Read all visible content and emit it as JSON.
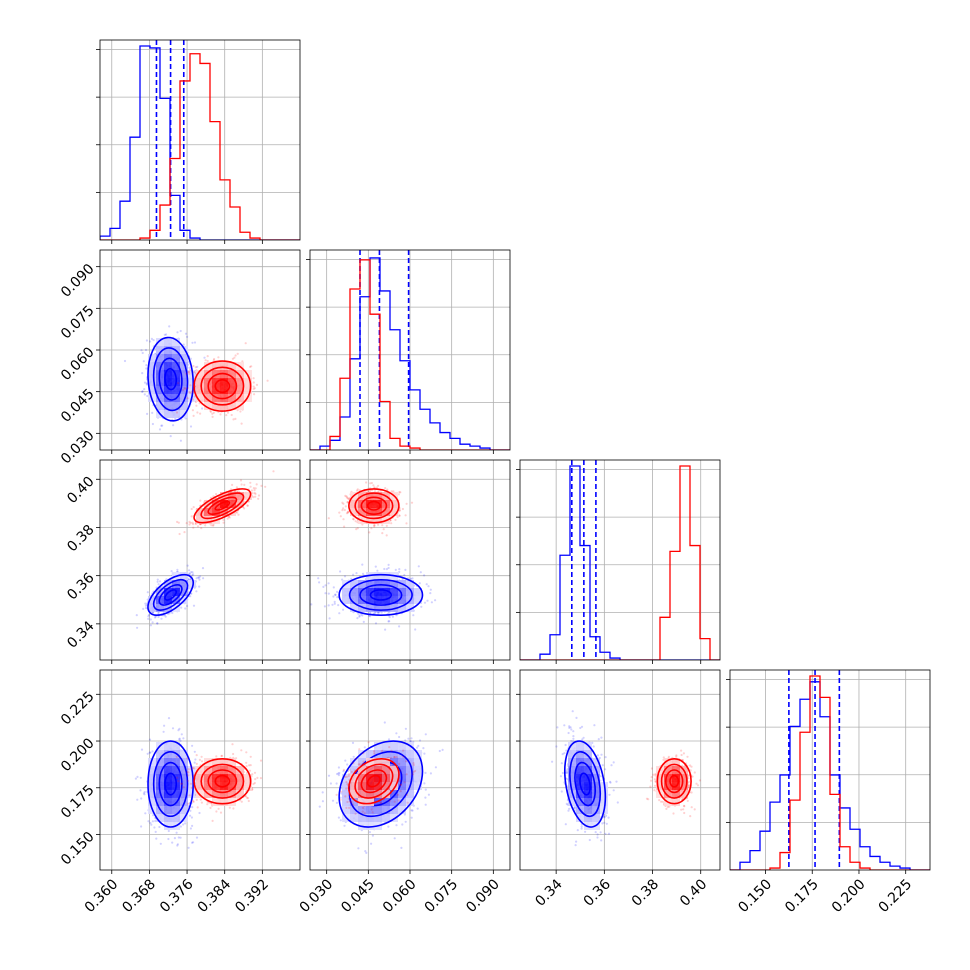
{
  "chart_data": {
    "type": "corner",
    "grid": true,
    "params": [
      {
        "range": [
          0.3575,
          0.4
        ],
        "ticks": [
          0.36,
          0.368,
          0.376,
          0.384,
          0.392
        ],
        "tick_labels": [
          "0.360",
          "0.368",
          "0.376",
          "0.384",
          "0.392"
        ]
      },
      {
        "range": [
          0.024,
          0.096
        ],
        "ticks": [
          0.03,
          0.045,
          0.06,
          0.075,
          0.09
        ],
        "tick_labels": [
          "0.030",
          "0.045",
          "0.060",
          "0.075",
          "0.090"
        ]
      },
      {
        "range": [
          0.325,
          0.408
        ],
        "ticks": [
          0.34,
          0.36,
          0.38,
          0.4
        ],
        "tick_labels": [
          "0.34",
          "0.36",
          "0.38",
          "0.40"
        ]
      },
      {
        "range": [
          0.131,
          0.238
        ],
        "ticks": [
          0.15,
          0.175,
          0.2,
          0.225
        ],
        "tick_labels": [
          "0.150",
          "0.175",
          "0.200",
          "0.225"
        ]
      }
    ],
    "series": [
      {
        "color": "#0000ff",
        "mean": [
          0.3725,
          0.0495,
          0.352,
          0.177
        ],
        "std": [
          0.0024,
          0.0075,
          0.0042,
          0.0115
        ],
        "corr": [
          [
            1,
            -0.1,
            0.6,
            0.0
          ],
          [
            -0.1,
            1,
            0.0,
            0.3
          ],
          [
            0.6,
            0.0,
            1,
            -0.3
          ],
          [
            0.0,
            0.3,
            -0.3,
            1
          ]
        ],
        "quantile_lines": [
          [
            0.3695,
            0.3725,
            0.3753
          ],
          [
            0.042,
            0.049,
            0.0595
          ],
          [
            0.3465,
            0.3515,
            0.3565
          ],
          [
            0.1625,
            0.1765,
            0.1895
          ]
        ],
        "histograms": [
          [
            0.02,
            0.06,
            0.2,
            0.53,
            1.0,
            0.99,
            0.73,
            0.23,
            0.05,
            0.01,
            0.0,
            0.0,
            0.0,
            0.0,
            0.0,
            0.0,
            0.0,
            0.0,
            0.0,
            0.0
          ],
          [
            0.0,
            0.02,
            0.05,
            0.17,
            0.47,
            0.79,
            0.99,
            0.82,
            0.62,
            0.46,
            0.31,
            0.21,
            0.14,
            0.09,
            0.06,
            0.03,
            0.02,
            0.01,
            0.0,
            0.0
          ],
          [
            0.0,
            0.0,
            0.03,
            0.13,
            0.54,
            1.0,
            0.59,
            0.12,
            0.04,
            0.01,
            0.0,
            0.0,
            0.0,
            0.0,
            0.0,
            0.0,
            0.0,
            0.0,
            0.0,
            0.0
          ],
          [
            0.0,
            0.04,
            0.1,
            0.2,
            0.35,
            0.49,
            0.74,
            0.88,
            0.97,
            0.79,
            0.49,
            0.32,
            0.21,
            0.12,
            0.07,
            0.04,
            0.02,
            0.01,
            0.0,
            0.0
          ]
        ]
      },
      {
        "color": "#ff0000",
        "mean": [
          0.3835,
          0.047,
          0.389,
          0.1785
        ],
        "std": [
          0.003,
          0.0045,
          0.0035,
          0.006
        ],
        "corr": [
          [
            1,
            0.0,
            0.7,
            0.0
          ],
          [
            0.0,
            1,
            0.0,
            0.3
          ],
          [
            0.7,
            0.0,
            1,
            0.0
          ],
          [
            0.0,
            0.3,
            0.0,
            1
          ]
        ],
        "quantile_lines": [],
        "histograms": [
          [
            0.0,
            0.0,
            0.0,
            0.0,
            0.01,
            0.05,
            0.18,
            0.42,
            0.82,
            0.96,
            0.91,
            0.61,
            0.31,
            0.17,
            0.04,
            0.01,
            0.0,
            0.0,
            0.0,
            0.0
          ],
          [
            0.0,
            0.0,
            0.07,
            0.37,
            0.83,
            0.98,
            0.7,
            0.25,
            0.06,
            0.02,
            0.01,
            0.0,
            0.0,
            0.0,
            0.0,
            0.0,
            0.0,
            0.0,
            0.0,
            0.0
          ],
          [
            0.0,
            0.0,
            0.0,
            0.0,
            0.0,
            0.0,
            0.0,
            0.0,
            0.0,
            0.0,
            0.0,
            0.0,
            0.0,
            0.0,
            0.22,
            0.56,
            1.0,
            0.59,
            0.11,
            0.0
          ],
          [
            0.0,
            0.0,
            0.0,
            0.0,
            0.01,
            0.09,
            0.36,
            0.71,
            1.0,
            0.89,
            0.39,
            0.12,
            0.04,
            0.01,
            0.0,
            0.0,
            0.0,
            0.0,
            0.0,
            0.0
          ]
        ]
      }
    ]
  }
}
